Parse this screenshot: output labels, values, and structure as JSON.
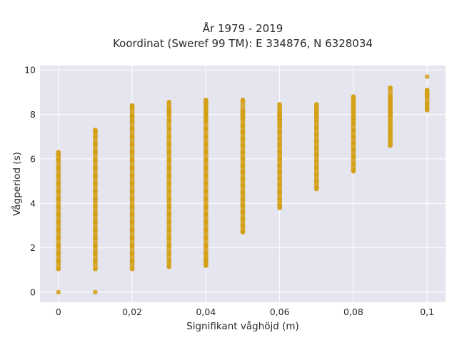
{
  "chart_data": {
    "type": "scatter",
    "title": "År 1979 - 2019",
    "subtitle": "Koordinat (Sweref 99 TM): E 334876, N 6328034",
    "xlabel": "Signifikant våghöjd (m)",
    "ylabel": "Vågperiod (s)",
    "xlim": [
      -0.005,
      0.105
    ],
    "ylim": [
      -0.45,
      10.2
    ],
    "x_ticks": [
      0,
      0.02,
      0.04,
      0.06,
      0.08,
      0.1
    ],
    "x_tick_labels": [
      "0",
      "0,02",
      "0,04",
      "0,06",
      "0,08",
      "0,1"
    ],
    "y_ticks": [
      0,
      2,
      4,
      6,
      8,
      10
    ],
    "y_tick_labels": [
      "0",
      "2",
      "4",
      "6",
      "8",
      "10"
    ],
    "grid": true,
    "colors": {
      "plot_background": "#e5e5f0",
      "grid": "#ffffff",
      "marker": "#d4a017"
    },
    "series": [
      {
        "x": [
          0,
          0,
          0,
          0,
          0,
          0,
          0,
          0,
          0,
          0,
          0,
          0,
          0,
          0,
          0,
          0,
          0,
          0,
          0.01,
          0.01,
          0.01,
          0.01,
          0.01,
          0.01,
          0.01,
          0.01,
          0.01,
          0.01,
          0.01,
          0.01,
          0.01,
          0.01,
          0.01,
          0.01,
          0.01,
          0.01,
          0.01,
          0.01,
          0.01,
          0.01,
          0.02,
          0.02,
          0.02,
          0.02,
          0.02,
          0.02,
          0.02,
          0.02,
          0.02,
          0.02,
          0.02,
          0.02,
          0.02,
          0.02,
          0.02,
          0.02,
          0.02,
          0.02,
          0.02,
          0.02,
          0.02,
          0.02,
          0.02,
          0.02,
          0.03,
          0.03,
          0.03,
          0.03,
          0.03,
          0.03,
          0.03,
          0.03,
          0.03,
          0.03,
          0.03,
          0.03,
          0.03,
          0.03,
          0.03,
          0.03,
          0.03,
          0.03,
          0.03,
          0.03,
          0.03,
          0.03,
          0.03,
          0.03,
          0.03,
          0.03,
          0.04,
          0.04,
          0.04,
          0.04,
          0.04,
          0.04,
          0.04,
          0.04,
          0.04,
          0.04,
          0.04,
          0.04,
          0.04,
          0.04,
          0.04,
          0.04,
          0.04,
          0.04,
          0.04,
          0.04,
          0.04,
          0.04,
          0.04,
          0.04,
          0.04,
          0.04,
          0.04,
          0.04,
          0.04,
          0.05,
          0.05,
          0.05,
          0.05,
          0.05,
          0.05,
          0.05,
          0.05,
          0.05,
          0.05,
          0.05,
          0.05,
          0.05,
          0.05,
          0.05,
          0.05,
          0.05,
          0.05,
          0.05,
          0.05,
          0.05,
          0.05,
          0.05,
          0.05,
          0.06,
          0.06,
          0.06,
          0.06,
          0.06,
          0.06,
          0.06,
          0.06,
          0.06,
          0.06,
          0.06,
          0.06,
          0.06,
          0.06,
          0.06,
          0.06,
          0.06,
          0.06,
          0.06,
          0.06,
          0.06,
          0.06,
          0.07,
          0.07,
          0.07,
          0.07,
          0.07,
          0.07,
          0.07,
          0.07,
          0.07,
          0.07,
          0.07,
          0.07,
          0.07,
          0.07,
          0.07,
          0.07,
          0.07,
          0.07,
          0.07,
          0.07,
          0.08,
          0.08,
          0.08,
          0.08,
          0.08,
          0.08,
          0.08,
          0.08,
          0.08,
          0.08,
          0.08,
          0.08,
          0.08,
          0.08,
          0.08,
          0.08,
          0.08,
          0.08,
          0.09,
          0.09,
          0.09,
          0.09,
          0.09,
          0.09,
          0.09,
          0.09,
          0.09,
          0.09,
          0.09,
          0.09,
          0.09,
          0.09,
          0.09,
          0.09,
          0.09,
          0.1,
          0.1,
          0.1,
          0.1,
          0.1,
          0.1,
          0.1,
          0.1,
          0.1
        ],
        "y": [
          0,
          1.05,
          1.4,
          1.75,
          2.1,
          2.45,
          2.8,
          3.15,
          3.5,
          3.85,
          4.2,
          4.55,
          4.9,
          5.25,
          5.6,
          5.95,
          6.2,
          6.3,
          0,
          1.05,
          1.4,
          1.75,
          2.1,
          2.45,
          2.8,
          3.15,
          3.5,
          3.85,
          4.2,
          4.55,
          4.9,
          5.25,
          5.6,
          5.95,
          6.3,
          6.65,
          7.0,
          7.2,
          7.25,
          7.3,
          1.05,
          1.4,
          1.75,
          2.1,
          2.45,
          2.8,
          3.15,
          3.5,
          3.85,
          4.2,
          4.55,
          4.9,
          5.25,
          5.6,
          5.95,
          6.3,
          6.65,
          7.0,
          7.35,
          7.7,
          7.9,
          7.95,
          8.3,
          8.4,
          1.15,
          1.4,
          1.75,
          2.1,
          2.45,
          2.8,
          3.15,
          3.5,
          3.85,
          4.2,
          4.55,
          4.9,
          5.25,
          5.6,
          5.95,
          6.3,
          6.65,
          7.0,
          7.35,
          7.7,
          8.0,
          8.05,
          8.15,
          8.25,
          8.3,
          8.55,
          1.2,
          1.25,
          1.4,
          1.5,
          1.75,
          2.1,
          2.45,
          2.8,
          3.15,
          3.5,
          3.85,
          4.2,
          4.55,
          4.9,
          5.25,
          5.6,
          5.95,
          6.3,
          6.65,
          7.0,
          7.35,
          7.7,
          7.9,
          8.0,
          8.1,
          8.2,
          8.4,
          8.55,
          8.65,
          2.7,
          2.75,
          3.0,
          3.3,
          3.6,
          3.9,
          4.2,
          4.5,
          4.8,
          5.1,
          5.4,
          5.7,
          6.0,
          6.3,
          6.6,
          6.9,
          7.2,
          7.5,
          7.8,
          7.9,
          8.0,
          8.1,
          8.15,
          8.65,
          3.8,
          3.9,
          4.2,
          4.5,
          4.8,
          5.1,
          5.4,
          5.7,
          6.0,
          6.3,
          6.6,
          6.9,
          7.2,
          7.5,
          7.7,
          7.8,
          7.9,
          7.95,
          8.0,
          8.1,
          8.2,
          8.45,
          4.65,
          4.7,
          5.0,
          5.3,
          5.6,
          5.9,
          6.2,
          6.5,
          6.8,
          7.1,
          7.4,
          7.7,
          7.9,
          7.95,
          8.0,
          8.05,
          8.1,
          8.2,
          8.4,
          8.45,
          5.45,
          5.5,
          5.8,
          6.1,
          6.4,
          6.7,
          7.0,
          7.3,
          7.6,
          7.8,
          7.9,
          8.1,
          8.2,
          8.3,
          8.4,
          8.5,
          8.7,
          8.8,
          6.6,
          6.7,
          6.9,
          7.1,
          7.3,
          7.5,
          7.7,
          7.9,
          8.0,
          8.1,
          8.2,
          8.3,
          8.45,
          8.6,
          8.7,
          8.8,
          9.2,
          8.2,
          8.3,
          8.5,
          8.8,
          8.9,
          9.0,
          9.05,
          9.1,
          9.7
        ]
      }
    ]
  }
}
